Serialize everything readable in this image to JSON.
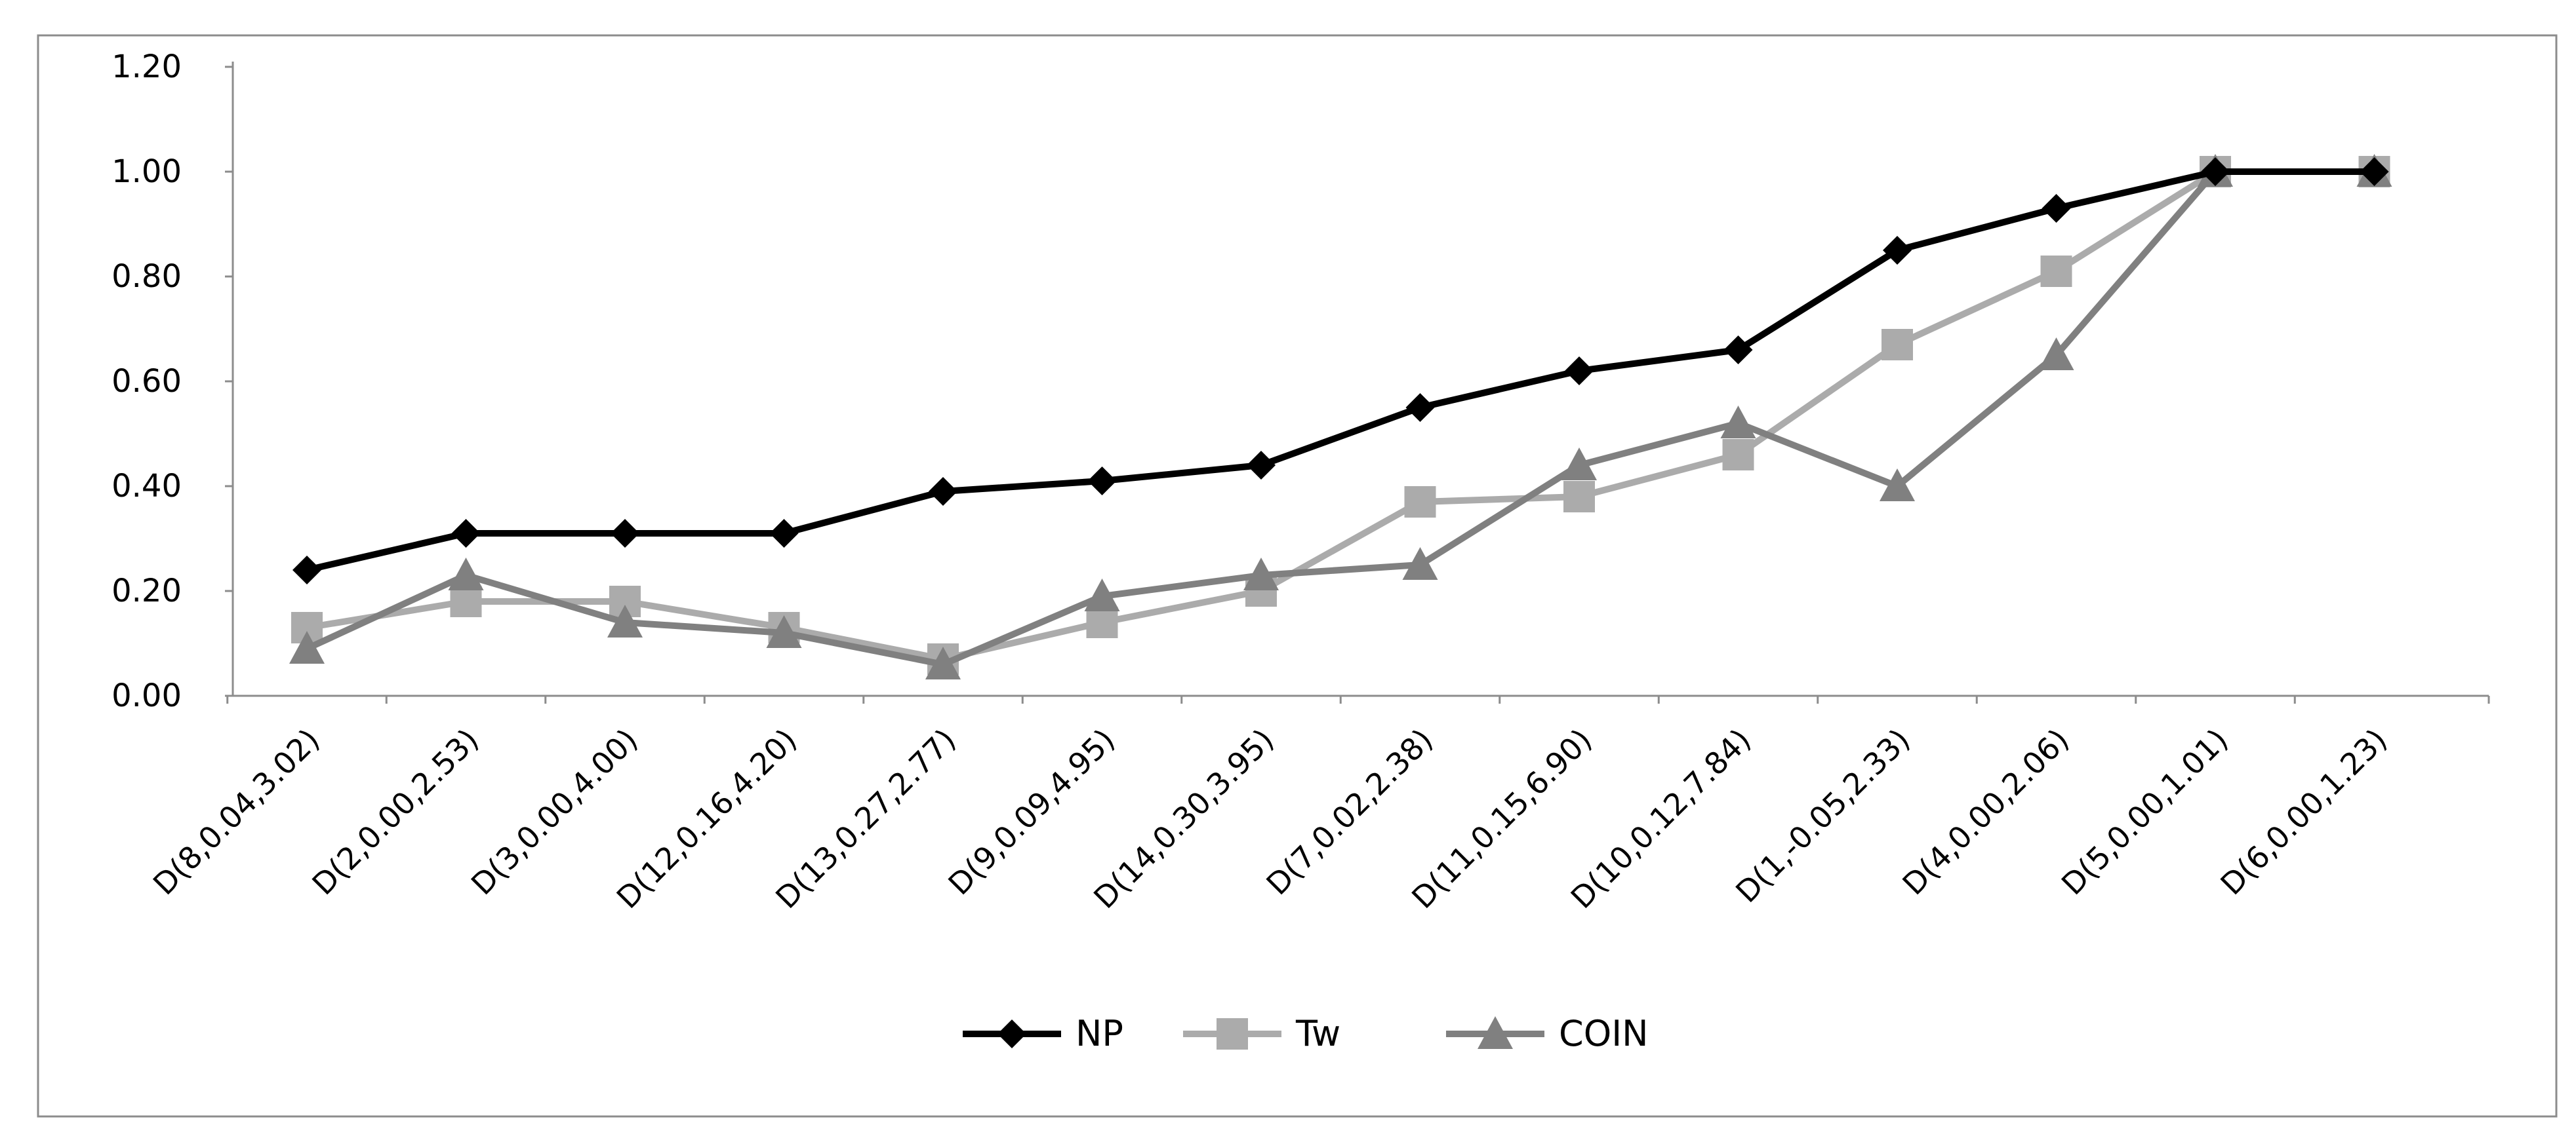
{
  "chart_data": {
    "type": "line",
    "title": "",
    "xlabel": "",
    "ylabel": "",
    "categories": [
      "D(8,0.04,3.02)",
      "D(2,0.00,2.53)",
      "D(3,0.00,4.00)",
      "D(12,0.16,4.20)",
      "D(13,0.27,2.77)",
      "D(9,0.09,4.95)",
      "D(14,0.30,3.95)",
      "D(7,0.02,2.38)",
      "D(11,0.15,6.90)",
      "D(10,0.12,7.84)",
      "D(1,-0.05,2.33)",
      "D(4,0.00,2.06)",
      "D(5,0.00,1.01)",
      "D(6,0.00,1.23)"
    ],
    "ylim": [
      0,
      1.2
    ],
    "yticks": [
      "0.00",
      "0.20",
      "0.40",
      "0.60",
      "0.80",
      "1.00",
      "1.20"
    ],
    "grid": false,
    "legend_position": "bottom",
    "series": [
      {
        "name": "NP",
        "color": "#000000",
        "marker": "diamond",
        "values": [
          0.24,
          0.31,
          0.31,
          0.31,
          0.39,
          0.41,
          0.44,
          0.55,
          0.62,
          0.66,
          0.85,
          0.93,
          1.0,
          1.0
        ]
      },
      {
        "name": "Tw",
        "color": "#ababab",
        "marker": "square",
        "values": [
          0.13,
          0.18,
          0.18,
          0.13,
          0.07,
          0.14,
          0.2,
          0.37,
          0.38,
          0.46,
          0.67,
          0.81,
          1.0,
          1.0
        ]
      },
      {
        "name": "COIN",
        "color": "#808080",
        "marker": "triangle",
        "values": [
          0.09,
          0.23,
          0.14,
          0.12,
          0.06,
          0.19,
          0.23,
          0.25,
          0.44,
          0.52,
          0.4,
          0.65,
          1.0,
          1.0
        ]
      }
    ]
  }
}
